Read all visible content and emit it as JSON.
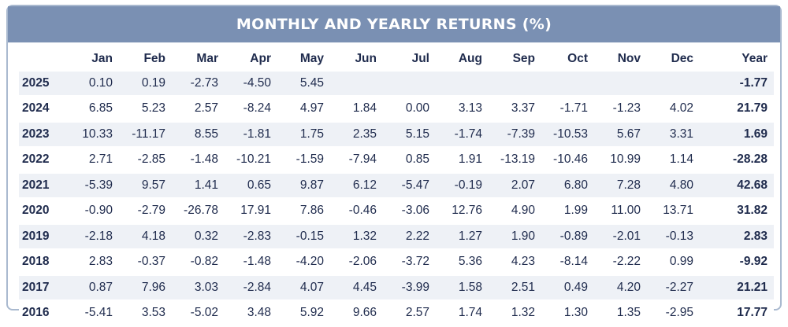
{
  "chart_data": {
    "type": "table",
    "title": "MONTHLY AND YEARLY RETURNS (%)",
    "columns": [
      "Jan",
      "Feb",
      "Mar",
      "Apr",
      "May",
      "Jun",
      "Jul",
      "Aug",
      "Sep",
      "Oct",
      "Nov",
      "Dec",
      "Year"
    ],
    "rows": [
      {
        "year": "2025",
        "values": [
          "0.10",
          "0.19",
          "-2.73",
          "-4.50",
          "5.45",
          "",
          "",
          "",
          "",
          "",
          "",
          "",
          "-1.77"
        ]
      },
      {
        "year": "2024",
        "values": [
          "6.85",
          "5.23",
          "2.57",
          "-8.24",
          "4.97",
          "1.84",
          "0.00",
          "3.13",
          "3.37",
          "-1.71",
          "-1.23",
          "4.02",
          "21.79"
        ]
      },
      {
        "year": "2023",
        "values": [
          "10.33",
          "-11.17",
          "8.55",
          "-1.81",
          "1.75",
          "2.35",
          "5.15",
          "-1.74",
          "-7.39",
          "-10.53",
          "5.67",
          "3.31",
          "1.69"
        ]
      },
      {
        "year": "2022",
        "values": [
          "2.71",
          "-2.85",
          "-1.48",
          "-10.21",
          "-1.59",
          "-7.94",
          "0.85",
          "1.91",
          "-13.19",
          "-10.46",
          "10.99",
          "1.14",
          "-28.28"
        ]
      },
      {
        "year": "2021",
        "values": [
          "-5.39",
          "9.57",
          "1.41",
          "0.65",
          "9.87",
          "6.12",
          "-5.47",
          "-0.19",
          "2.07",
          "6.80",
          "7.28",
          "4.80",
          "42.68"
        ]
      },
      {
        "year": "2020",
        "values": [
          "-0.90",
          "-2.79",
          "-26.78",
          "17.91",
          "7.86",
          "-0.46",
          "-3.06",
          "12.76",
          "4.90",
          "1.99",
          "11.00",
          "13.71",
          "31.82"
        ]
      },
      {
        "year": "2019",
        "values": [
          "-2.18",
          "4.18",
          "0.32",
          "-2.83",
          "-0.15",
          "1.32",
          "2.22",
          "1.27",
          "1.90",
          "-0.89",
          "-2.01",
          "-0.13",
          "2.83"
        ]
      },
      {
        "year": "2018",
        "values": [
          "2.83",
          "-0.37",
          "-0.82",
          "-1.48",
          "-4.20",
          "-2.06",
          "-3.72",
          "5.36",
          "4.23",
          "-8.14",
          "-2.22",
          "0.99",
          "-9.92"
        ]
      },
      {
        "year": "2017",
        "values": [
          "0.87",
          "7.96",
          "3.03",
          "-2.84",
          "4.07",
          "4.45",
          "-3.99",
          "1.58",
          "2.51",
          "0.49",
          "4.20",
          "-2.27",
          "21.21"
        ]
      },
      {
        "year": "2016",
        "values": [
          "-5.41",
          "3.53",
          "-5.02",
          "3.48",
          "5.92",
          "9.66",
          "2.57",
          "1.74",
          "1.32",
          "1.30",
          "1.35",
          "-2.95",
          "17.77"
        ]
      }
    ]
  },
  "colors": {
    "header_bg": "#7a90b3",
    "border": "#a9b9cf",
    "stripe": "#eef1f6",
    "text": "#1f2b4d"
  }
}
